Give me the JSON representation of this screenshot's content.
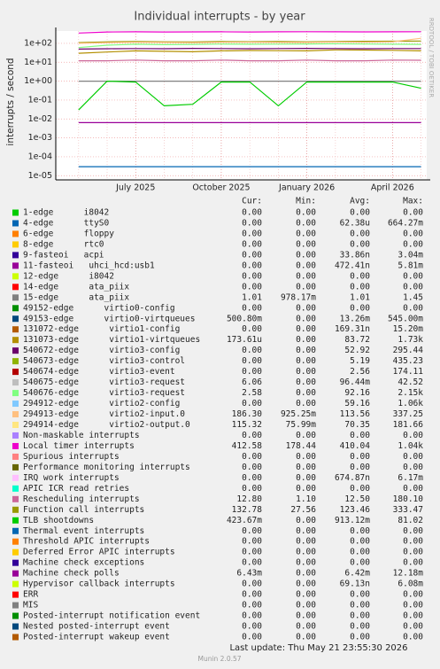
{
  "chart_data": {
    "type": "line",
    "title": "Individual interrupts - by year",
    "y_label": "interrupts / second",
    "side_label": "RRDTOOL / TOBI OETIKER",
    "log_scale": true,
    "grid": true,
    "categories": [
      null,
      null,
      "July 2025",
      null,
      null,
      "October 2025",
      null,
      null,
      "January 2026",
      null,
      null,
      "April 2026",
      null
    ],
    "ylim": [
      6e-06,
      450
    ],
    "yticks": [
      {
        "value": 1e-05,
        "label": "1e-05"
      },
      {
        "value": 0.0001,
        "label": "1e-04"
      },
      {
        "value": 0.001,
        "label": "1e-03"
      },
      {
        "value": 0.01,
        "label": "1e-02"
      },
      {
        "value": 0.1,
        "label": "1e-01"
      },
      {
        "value": 1,
        "label": "1e+00"
      },
      {
        "value": 10,
        "label": "1e+01"
      },
      {
        "value": 100,
        "label": "1e+02"
      }
    ],
    "series": [
      {
        "color": "#ee00cc",
        "values": [
          350,
          400,
          410,
          400,
          405,
          410,
          400,
          410,
          415,
          410,
          405,
          410,
          412
        ]
      },
      {
        "color": "#999900",
        "values": [
          110,
          120,
          125,
          120,
          118,
          125,
          122,
          124,
          120,
          125,
          128,
          130,
          133
        ]
      },
      {
        "color": "#ffc080",
        "values": [
          100,
          110,
          115,
          112,
          110,
          114,
          115,
          113,
          112,
          118,
          115,
          120,
          186
        ]
      },
      {
        "color": "#80ff80",
        "values": [
          60,
          80,
          90,
          85,
          88,
          92,
          90,
          91,
          93,
          95,
          92,
          90,
          88
        ]
      },
      {
        "color": "#6b006b",
        "values": [
          50,
          52,
          53,
          52,
          54,
          53,
          52,
          53,
          54,
          53,
          52,
          53,
          53
        ]
      },
      {
        "color": "#b38f00",
        "values": [
          30,
          35,
          40,
          38,
          36,
          40,
          42,
          41,
          40,
          45,
          44,
          43,
          40
        ]
      },
      {
        "color": "#cc6699",
        "values": [
          12,
          12,
          13,
          12,
          12,
          13,
          12,
          12,
          13,
          12,
          12,
          13,
          12.8
        ]
      },
      {
        "color": "#808080",
        "values": [
          1,
          1,
          1,
          1,
          1,
          1,
          1,
          1,
          1,
          1,
          1,
          1,
          1
        ]
      },
      {
        "color": "#00cc00",
        "values": [
          0.03,
          1,
          0.9,
          0.05,
          0.06,
          0.9,
          0.9,
          0.05,
          0.9,
          0.9,
          0.9,
          0.9,
          0.42
        ]
      },
      {
        "color": "#990099",
        "values": [
          0.0064,
          0.0064,
          0.0064,
          0.0064,
          0.0064,
          0.0064,
          0.0064,
          0.0064,
          0.0064,
          0.0064,
          0.0064,
          0.0064,
          0.0064
        ]
      },
      {
        "color": "#0066b3",
        "values": [
          3e-05,
          3e-05,
          3e-05,
          3e-05,
          3e-05,
          3e-05,
          3e-05,
          3e-05,
          3e-05,
          3e-05,
          3e-05,
          3e-05,
          3e-05
        ]
      }
    ]
  },
  "legend": {
    "columns": [
      "Cur:",
      "Min:",
      "Avg:",
      "Max:"
    ],
    "rows": [
      {
        "label": "1-edge      i8042",
        "color": "#00cc00",
        "cur": "0.00",
        "min": "0.00",
        "avg": "0.00",
        "max": "0.00"
      },
      {
        "label": "4-edge      ttyS0",
        "color": "#0066b3",
        "cur": "0.00",
        "min": "0.00",
        "avg": "62.38u",
        "max": "664.27m"
      },
      {
        "label": "6-edge      floppy",
        "color": "#ff8000",
        "cur": "0.00",
        "min": "0.00",
        "avg": "0.00",
        "max": "0.00"
      },
      {
        "label": "8-edge      rtc0",
        "color": "#ffcc00",
        "cur": "0.00",
        "min": "0.00",
        "avg": "0.00",
        "max": "0.00"
      },
      {
        "label": "9-fasteoi   acpi",
        "color": "#330099",
        "cur": "0.00",
        "min": "0.00",
        "avg": "33.86n",
        "max": "3.04m"
      },
      {
        "label": "11-fasteoi   uhci_hcd:usb1",
        "color": "#990099",
        "cur": "0.00",
        "min": "0.00",
        "avg": "472.41n",
        "max": "5.81m"
      },
      {
        "label": "12-edge      i8042",
        "color": "#ccff00",
        "cur": "0.00",
        "min": "0.00",
        "avg": "0.00",
        "max": "0.00"
      },
      {
        "label": "14-edge      ata_piix",
        "color": "#ff0000",
        "cur": "0.00",
        "min": "0.00",
        "avg": "0.00",
        "max": "0.00"
      },
      {
        "label": "15-edge      ata_piix",
        "color": "#808080",
        "cur": "1.01",
        "min": "978.17m",
        "avg": "1.01",
        "max": "1.45"
      },
      {
        "label": "49152-edge      virtio0-config",
        "color": "#008f00",
        "cur": "0.00",
        "min": "0.00",
        "avg": "0.00",
        "max": "0.00"
      },
      {
        "label": "49153-edge      virtio0-virtqueues",
        "color": "#00487d",
        "cur": "500.80m",
        "min": "0.00",
        "avg": "13.26m",
        "max": "545.00m"
      },
      {
        "label": "131072-edge      virtio1-config",
        "color": "#b35a00",
        "cur": "0.00",
        "min": "0.00",
        "avg": "169.31n",
        "max": "15.20m"
      },
      {
        "label": "131073-edge      virtio1-virtqueues",
        "color": "#b38f00",
        "cur": "173.61u",
        "min": "0.00",
        "avg": "83.72",
        "max": "1.73k"
      },
      {
        "label": "540672-edge      virtio3-config",
        "color": "#6b006b",
        "cur": "0.00",
        "min": "0.00",
        "avg": "52.92",
        "max": "295.44"
      },
      {
        "label": "540673-edge      virtio3-control",
        "color": "#8fb300",
        "cur": "0.00",
        "min": "0.00",
        "avg": "5.19",
        "max": "435.23"
      },
      {
        "label": "540674-edge      virtio3-event",
        "color": "#b30000",
        "cur": "0.00",
        "min": "0.00",
        "avg": "2.56",
        "max": "174.11"
      },
      {
        "label": "540675-edge      virtio3-request",
        "color": "#bebebe",
        "cur": "6.06",
        "min": "0.00",
        "avg": "96.44m",
        "max": "42.52"
      },
      {
        "label": "540676-edge      virtio3-request",
        "color": "#80ff80",
        "cur": "2.58",
        "min": "0.00",
        "avg": "92.16",
        "max": "2.15k"
      },
      {
        "label": "294912-edge      virtio2-config",
        "color": "#80c9ff",
        "cur": "0.00",
        "min": "0.00",
        "avg": "59.16",
        "max": "1.06k"
      },
      {
        "label": "294913-edge      virtio2-input.0",
        "color": "#ffc080",
        "cur": "186.30",
        "min": "925.25m",
        "avg": "113.56",
        "max": "337.25"
      },
      {
        "label": "294914-edge      virtio2-output.0",
        "color": "#ffe680",
        "cur": "115.32",
        "min": "75.99m",
        "avg": "70.35",
        "max": "181.66"
      },
      {
        "label": "Non-maskable interrupts",
        "color": "#aa80ff",
        "cur": "0.00",
        "min": "0.00",
        "avg": "0.00",
        "max": "0.00"
      },
      {
        "label": "Local timer interrupts",
        "color": "#ee00cc",
        "cur": "412.58",
        "min": "178.44",
        "avg": "410.04",
        "max": "1.04k"
      },
      {
        "label": "Spurious interrupts",
        "color": "#ff8080",
        "cur": "0.00",
        "min": "0.00",
        "avg": "0.00",
        "max": "0.00"
      },
      {
        "label": "Performance monitoring interrupts",
        "color": "#666600",
        "cur": "0.00",
        "min": "0.00",
        "avg": "0.00",
        "max": "0.00"
      },
      {
        "label": "IRQ work interrupts",
        "color": "#ffbfff",
        "cur": "0.00",
        "min": "0.00",
        "avg": "674.87n",
        "max": "6.17m"
      },
      {
        "label": "APIC ICR read retries",
        "color": "#00ffcc",
        "cur": "0.00",
        "min": "0.00",
        "avg": "0.00",
        "max": "0.00"
      },
      {
        "label": "Rescheduling interrupts",
        "color": "#cc6699",
        "cur": "12.80",
        "min": "1.10",
        "avg": "12.50",
        "max": "180.10"
      },
      {
        "label": "Function call interrupts",
        "color": "#999900",
        "cur": "132.78",
        "min": "27.56",
        "avg": "123.46",
        "max": "333.47"
      },
      {
        "label": "TLB shootdowns",
        "color": "#00cc00",
        "cur": "423.67m",
        "min": "0.00",
        "avg": "913.12m",
        "max": "81.02"
      },
      {
        "label": "Thermal event interrupts",
        "color": "#0066b3",
        "cur": "0.00",
        "min": "0.00",
        "avg": "0.00",
        "max": "0.00"
      },
      {
        "label": "Threshold APIC interrupts",
        "color": "#ff8000",
        "cur": "0.00",
        "min": "0.00",
        "avg": "0.00",
        "max": "0.00"
      },
      {
        "label": "Deferred Error APIC interrupts",
        "color": "#ffcc00",
        "cur": "0.00",
        "min": "0.00",
        "avg": "0.00",
        "max": "0.00"
      },
      {
        "label": "Machine check exceptions",
        "color": "#330099",
        "cur": "0.00",
        "min": "0.00",
        "avg": "0.00",
        "max": "0.00"
      },
      {
        "label": "Machine check polls",
        "color": "#990099",
        "cur": "6.43m",
        "min": "0.00",
        "avg": "6.42m",
        "max": "12.18m"
      },
      {
        "label": "Hypervisor callback interrupts",
        "color": "#ccff00",
        "cur": "0.00",
        "min": "0.00",
        "avg": "69.13n",
        "max": "6.08m"
      },
      {
        "label": "ERR",
        "color": "#ff0000",
        "cur": "0.00",
        "min": "0.00",
        "avg": "0.00",
        "max": "0.00"
      },
      {
        "label": "MIS",
        "color": "#808080",
        "cur": "0.00",
        "min": "0.00",
        "avg": "0.00",
        "max": "0.00"
      },
      {
        "label": "Posted-interrupt notification event",
        "color": "#008f00",
        "cur": "0.00",
        "min": "0.00",
        "avg": "0.00",
        "max": "0.00"
      },
      {
        "label": "Nested posted-interrupt event",
        "color": "#00487d",
        "cur": "0.00",
        "min": "0.00",
        "avg": "0.00",
        "max": "0.00"
      },
      {
        "label": "Posted-interrupt wakeup event",
        "color": "#b35a00",
        "cur": "0.00",
        "min": "0.00",
        "avg": "0.00",
        "max": "0.00"
      }
    ]
  },
  "footer": {
    "last_update": "Last update: Thu May 21 23:55:30 2026",
    "version": "Munin 2.0.57"
  }
}
